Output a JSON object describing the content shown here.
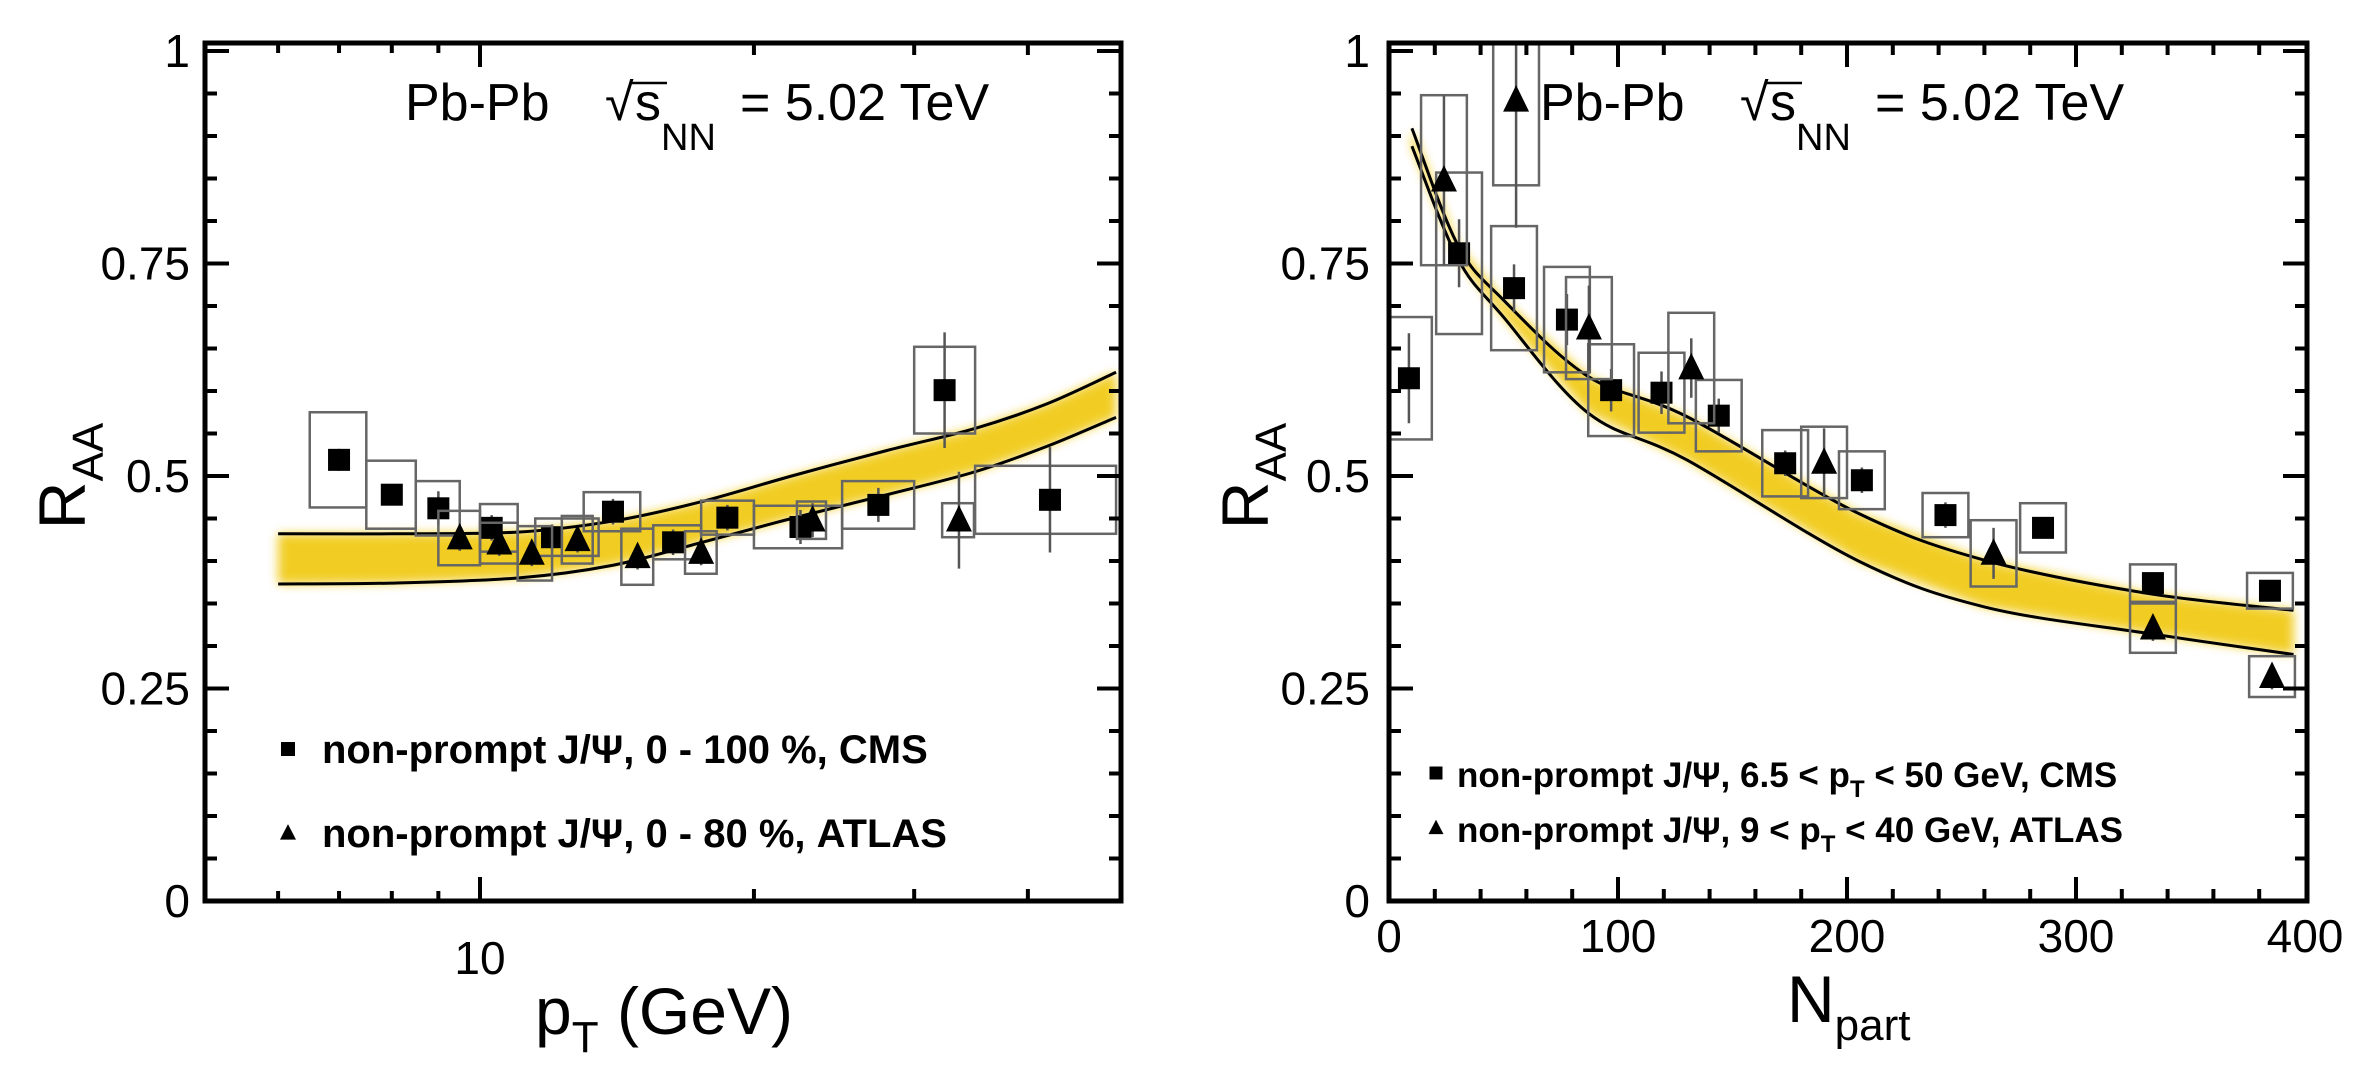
{
  "chart_data": [
    {
      "type": "scatter",
      "panel": "left",
      "title": {
        "system": "Pb-Pb",
        "sqrt": "√",
        "s": "s",
        "sub": "NN",
        "value": "= 5.02 TeV"
      },
      "xlabel": {
        "main": "p",
        "sub": "T",
        "rest": " (GeV)"
      },
      "ylabel": {
        "main": "R",
        "sub": "AA"
      },
      "xscale": "log",
      "xlim": [
        5,
        50
      ],
      "ylim": [
        0,
        1
      ],
      "xticks": [
        {
          "value": 10,
          "label": "10"
        }
      ],
      "yticks": [
        {
          "value": 0,
          "label": "0"
        },
        {
          "value": 0.25,
          "label": "0.25"
        },
        {
          "value": 0.5,
          "label": "0.5"
        },
        {
          "value": 0.75,
          "label": "0.75"
        },
        {
          "value": 1,
          "label": "1"
        }
      ],
      "legend": {
        "position": "bottom-left"
      },
      "series": [
        {
          "legend": {
            "pre": "non-prompt J/Ψ, 0 - 100 %, CMS"
          },
          "marker": "square",
          "points": [
            {
              "x": 7.0,
              "y": 0.519,
              "stat": 0.013,
              "sys": 0.056,
              "xlo": 6.5,
              "xhi": 7.5
            },
            {
              "x": 8.0,
              "y": 0.478,
              "stat": 0.012,
              "sys": 0.04,
              "xlo": 7.5,
              "xhi": 8.5
            },
            {
              "x": 9.0,
              "y": 0.462,
              "stat": 0.02,
              "sys": 0.032,
              "xlo": 8.5,
              "xhi": 9.5
            },
            {
              "x": 10.3,
              "y": 0.439,
              "stat": 0.015,
              "sys": 0.028,
              "xlo": 10,
              "xhi": 11
            },
            {
              "x": 12.0,
              "y": 0.428,
              "stat": 0.015,
              "sys": 0.022,
              "xlo": 11.5,
              "xhi": 13.5
            },
            {
              "x": 14.0,
              "y": 0.458,
              "stat": 0.015,
              "sys": 0.023,
              "xlo": 13,
              "xhi": 15
            },
            {
              "x": 16.3,
              "y": 0.422,
              "stat": 0.015,
              "sys": 0.02,
              "xlo": 15.5,
              "xhi": 17.5
            },
            {
              "x": 18.7,
              "y": 0.451,
              "stat": 0.015,
              "sys": 0.02,
              "xlo": 17.5,
              "xhi": 20
            },
            {
              "x": 22.5,
              "y": 0.44,
              "stat": 0.02,
              "sys": 0.025,
              "xlo": 20,
              "xhi": 25
            },
            {
              "x": 27.4,
              "y": 0.466,
              "stat": 0.02,
              "sys": 0.028,
              "xlo": 25,
              "xhi": 30
            },
            {
              "x": 32.4,
              "y": 0.601,
              "stat": 0.068,
              "sys": 0.051,
              "xlo": 30,
              "xhi": 35
            },
            {
              "x": 42.3,
              "y": 0.472,
              "stat": 0.062,
              "sys": 0.04,
              "xlo": 35,
              "xhi": 50
            }
          ]
        },
        {
          "legend": {
            "pre": "non-prompt J/Ψ, 0 - 80 %, ATLAS"
          },
          "marker": "triangle",
          "points": [
            {
              "x": 9.5,
              "y": 0.427,
              "stat": 0.015,
              "sys": 0.032,
              "xlo": 9,
              "xhi": 10
            },
            {
              "x": 10.5,
              "y": 0.421,
              "stat": 0.015,
              "sys": 0.024,
              "xlo": 10,
              "xhi": 11
            },
            {
              "x": 11.4,
              "y": 0.409,
              "stat": 0.015,
              "sys": 0.032,
              "xlo": 11,
              "xhi": 12
            },
            {
              "x": 12.8,
              "y": 0.425,
              "stat": 0.015,
              "sys": 0.028,
              "xlo": 12.3,
              "xhi": 13.3
            },
            {
              "x": 14.9,
              "y": 0.405,
              "stat": 0.015,
              "sys": 0.033,
              "xlo": 14.3,
              "xhi": 15.5
            },
            {
              "x": 17.5,
              "y": 0.41,
              "stat": 0.015,
              "sys": 0.025,
              "xlo": 16.8,
              "xhi": 18.2
            },
            {
              "x": 23.2,
              "y": 0.448,
              "stat": 0.02,
              "sys": 0.022,
              "xlo": 22.3,
              "xhi": 24
            },
            {
              "x": 33.6,
              "y": 0.448,
              "stat": 0.057,
              "sys": 0.02,
              "xlo": 32.2,
              "xhi": 34.9
            }
          ]
        }
      ],
      "model": {
        "color": "#f0c80c",
        "x": [
          6,
          8,
          11,
          14,
          17.4,
          22,
          28,
          35,
          42,
          50
        ],
        "upper": [
          0.432,
          0.432,
          0.434,
          0.447,
          0.469,
          0.5,
          0.53,
          0.556,
          0.585,
          0.622
        ],
        "lower": [
          0.373,
          0.374,
          0.38,
          0.395,
          0.421,
          0.45,
          0.478,
          0.505,
          0.535,
          0.569
        ]
      }
    },
    {
      "type": "scatter",
      "panel": "right",
      "title": {
        "system": "Pb-Pb",
        "sqrt": "√",
        "s": "s",
        "sub": "NN",
        "value": "= 5.02 TeV"
      },
      "xlabel": {
        "main": "N",
        "sub": "part"
      },
      "ylabel": {
        "main": "R",
        "sub": "AA"
      },
      "xscale": "linear",
      "xlim": [
        0,
        400
      ],
      "ylim": [
        0,
        1
      ],
      "xticks": [
        {
          "value": 0,
          "label": "0"
        },
        {
          "value": 100,
          "label": "100"
        },
        {
          "value": 200,
          "label": "200"
        },
        {
          "value": 300,
          "label": "300"
        },
        {
          "value": 400,
          "label": "400"
        }
      ],
      "yticks": [
        {
          "value": 0,
          "label": "0"
        },
        {
          "value": 0.25,
          "label": "0.25"
        },
        {
          "value": 0.5,
          "label": "0.5"
        },
        {
          "value": 0.75,
          "label": "0.75"
        },
        {
          "value": 1,
          "label": "1"
        }
      ],
      "legend": {
        "position": "bottom-left"
      },
      "box_halfwidth": 10,
      "series": [
        {
          "legend": {
            "pre": "non-prompt J/Ψ, 6.5 < p",
            "sub": "T",
            "post": " < 50 GeV, CMS"
          },
          "marker": "square",
          "points": [
            {
              "x": 8.7,
              "y": 0.615,
              "stat": 0.053,
              "sys": 0.072
            },
            {
              "x": 30.6,
              "y": 0.762,
              "stat": 0.04,
              "sys": 0.095
            },
            {
              "x": 54.6,
              "y": 0.721,
              "stat": 0.028,
              "sys": 0.073
            },
            {
              "x": 77.7,
              "y": 0.684,
              "stat": 0.03,
              "sys": 0.062
            },
            {
              "x": 97,
              "y": 0.601,
              "stat": 0.025,
              "sys": 0.054
            },
            {
              "x": 119,
              "y": 0.598,
              "stat": 0.025,
              "sys": 0.047
            },
            {
              "x": 144,
              "y": 0.571,
              "stat": 0.02,
              "sys": 0.042
            },
            {
              "x": 173,
              "y": 0.515,
              "stat": 0.015,
              "sys": 0.039
            },
            {
              "x": 206.5,
              "y": 0.495,
              "stat": 0.015,
              "sys": 0.034
            },
            {
              "x": 243,
              "y": 0.454,
              "stat": 0.015,
              "sys": 0.026
            },
            {
              "x": 285.6,
              "y": 0.439,
              "stat": 0.012,
              "sys": 0.029
            },
            {
              "x": 333.6,
              "y": 0.374,
              "stat": 0.012,
              "sys": 0.022
            },
            {
              "x": 384.7,
              "y": 0.365,
              "stat": 0.012,
              "sys": 0.021
            }
          ]
        },
        {
          "legend": {
            "pre": "non-prompt J/Ψ, 9 < p",
            "sub": "T",
            "post": " < 40 GeV, ATLAS"
          },
          "marker": "triangle",
          "points": [
            {
              "x": 24,
              "y": 0.848,
              "stat": 0.1,
              "sys": 0.1
            },
            {
              "x": 55.5,
              "y": 0.942,
              "stat": 0.15,
              "sys": 0.1
            },
            {
              "x": 87.3,
              "y": 0.674,
              "stat": 0.05,
              "sys": 0.06
            },
            {
              "x": 132,
              "y": 0.627,
              "stat": 0.035,
              "sys": 0.065
            },
            {
              "x": 190,
              "y": 0.516,
              "stat": 0.04,
              "sys": 0.042
            },
            {
              "x": 264,
              "y": 0.409,
              "stat": 0.03,
              "sys": 0.039
            },
            {
              "x": 333.6,
              "y": 0.321,
              "stat": 0.015,
              "sys": 0.029
            },
            {
              "x": 385.6,
              "y": 0.264,
              "stat": 0.015,
              "sys": 0.024
            }
          ]
        }
      ],
      "model": {
        "color": "#f0c80c",
        "x": [
          10,
          30,
          50,
          87,
          130,
          205,
          260,
          331,
          395
        ],
        "upper": [
          0.909,
          0.772,
          0.707,
          0.617,
          0.57,
          0.456,
          0.401,
          0.362,
          0.342
        ],
        "lower": [
          0.888,
          0.756,
          0.687,
          0.574,
          0.519,
          0.4,
          0.346,
          0.315,
          0.29
        ]
      }
    }
  ]
}
